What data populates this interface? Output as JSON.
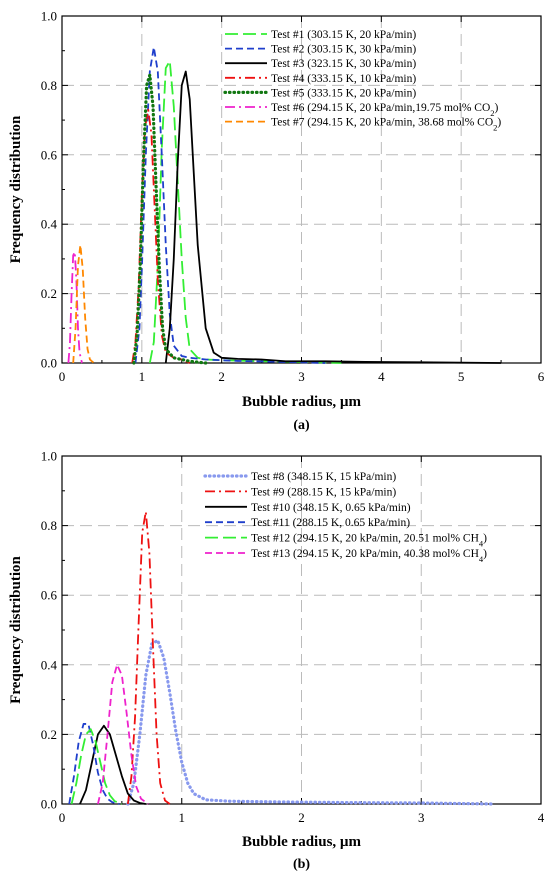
{
  "chart_data": [
    {
      "type": "line",
      "panel_label": "(a)",
      "xlabel": "Bubble radius, µm",
      "ylabel": "Frequency distribution",
      "xlim": [
        0,
        6
      ],
      "ylim": [
        0,
        1.0
      ],
      "xticks": [
        "0",
        "1",
        "2",
        "3",
        "4",
        "5",
        "6"
      ],
      "yticks": [
        "0.0",
        "0.2",
        "0.4",
        "0.6",
        "0.8",
        "1.0"
      ],
      "grid": true,
      "legend_position": "top-right",
      "series": [
        {
          "name": "Test #1 (303.15 K, 20 kPa/min)",
          "name_main": "Test #1 (303.15 K, 20 kPa/min)",
          "name_sub": "",
          "name_tail": "",
          "color": "#33ee33",
          "dash": "long-dash",
          "peak_x": 1.32,
          "peak_y": 0.875,
          "x": [
            1.1,
            1.15,
            1.2,
            1.25,
            1.3,
            1.35,
            1.4,
            1.45,
            1.5,
            1.55,
            1.6,
            1.7,
            1.8,
            2.0,
            2.5,
            3.0,
            3.5
          ],
          "y": [
            0.0,
            0.06,
            0.28,
            0.62,
            0.85,
            0.87,
            0.74,
            0.52,
            0.3,
            0.13,
            0.04,
            0.015,
            0.01,
            0.008,
            0.005,
            0.003,
            0.0
          ]
        },
        {
          "name": "Test #2 (303.15 K, 30 kPa/min)",
          "name_main": "Test #2 (303.15 K, 30 kPa/min)",
          "name_sub": "",
          "name_tail": "",
          "color": "#1f3fcc",
          "dash": "dash",
          "peak_x": 1.17,
          "peak_y": 0.915,
          "x": [
            0.92,
            0.97,
            1.0,
            1.05,
            1.1,
            1.15,
            1.2,
            1.25,
            1.3,
            1.35,
            1.4,
            1.5,
            1.6,
            1.8,
            2.2,
            2.8,
            3.3
          ],
          "y": [
            0.0,
            0.1,
            0.27,
            0.6,
            0.84,
            0.91,
            0.84,
            0.6,
            0.34,
            0.14,
            0.05,
            0.02,
            0.015,
            0.01,
            0.006,
            0.003,
            0.0
          ]
        },
        {
          "name": "Test #3 (323.15 K, 30 kPa/min)",
          "name_main": "Test #3 (323.15 K, 30 kPa/min)",
          "name_sub": "",
          "name_tail": "",
          "color": "#000000",
          "dash": "solid",
          "peak_x": 1.53,
          "peak_y": 0.845,
          "x": [
            1.3,
            1.35,
            1.4,
            1.45,
            1.5,
            1.55,
            1.6,
            1.65,
            1.7,
            1.8,
            1.9,
            2.0,
            2.2,
            2.5,
            2.8,
            3.3,
            3.8,
            4.5,
            5.5
          ],
          "y": [
            0.0,
            0.1,
            0.3,
            0.58,
            0.8,
            0.84,
            0.76,
            0.55,
            0.34,
            0.1,
            0.03,
            0.015,
            0.012,
            0.01,
            0.005,
            0.005,
            0.003,
            0.002,
            0.0
          ]
        },
        {
          "name": "Test #4 (333.15 K, 10 kPa/min)",
          "name_main": "Test #4 (333.15 K, 10 kPa/min)",
          "name_sub": "",
          "name_tail": "",
          "color": "#ee1111",
          "dash": "dash-dot",
          "peak_x": 1.08,
          "peak_y": 0.74,
          "x": [
            0.88,
            0.92,
            0.96,
            1.0,
            1.04,
            1.08,
            1.12,
            1.16,
            1.2,
            1.25,
            1.3,
            1.4,
            1.5,
            1.6
          ],
          "y": [
            0.0,
            0.06,
            0.22,
            0.48,
            0.68,
            0.73,
            0.66,
            0.45,
            0.24,
            0.08,
            0.03,
            0.015,
            0.01,
            0.0
          ]
        },
        {
          "name": "Test #5 (333.15 K, 20 kPa/min)",
          "name_main": "Test #5 (333.15 K, 20 kPa/min)",
          "name_sub": "",
          "name_tail": "",
          "color": "#117711",
          "dash": "dot",
          "peak_x": 1.1,
          "peak_y": 0.835,
          "x": [
            0.9,
            0.94,
            0.98,
            1.02,
            1.06,
            1.1,
            1.14,
            1.18,
            1.22,
            1.26,
            1.3,
            1.4,
            1.5,
            1.6,
            1.8
          ],
          "y": [
            0.0,
            0.08,
            0.28,
            0.58,
            0.8,
            0.83,
            0.74,
            0.5,
            0.27,
            0.1,
            0.04,
            0.015,
            0.01,
            0.005,
            0.0
          ]
        },
        {
          "name": "Test #6 (294.15 K, 20 kPa/min,19.75 mol% CO2)",
          "name_main": "Test #6 (294.15 K, 20 kPa/min,19.75 mol% CO",
          "name_sub": "2",
          "name_tail": ")",
          "color": "#ee22cc",
          "dash": "dash-dot",
          "peak_x": 0.15,
          "peak_y": 0.325,
          "x": [
            0.08,
            0.1,
            0.12,
            0.14,
            0.16,
            0.18,
            0.2,
            0.22,
            0.25
          ],
          "y": [
            0.0,
            0.06,
            0.2,
            0.31,
            0.32,
            0.24,
            0.1,
            0.03,
            0.0
          ]
        },
        {
          "name": "Test #7 (294.15 K, 20 kPa/min, 38.68 mol% CO2)",
          "name_main": "Test #7 (294.15 K, 20 kPa/min, 38.68 mol% CO",
          "name_sub": "2",
          "name_tail": ")",
          "color": "#ff8800",
          "dash": "dash",
          "peak_x": 0.23,
          "peak_y": 0.345,
          "x": [
            0.14,
            0.17,
            0.2,
            0.23,
            0.26,
            0.29,
            0.32,
            0.35,
            0.4
          ],
          "y": [
            0.0,
            0.1,
            0.28,
            0.34,
            0.27,
            0.13,
            0.04,
            0.01,
            0.0
          ]
        }
      ]
    },
    {
      "type": "line",
      "panel_label": "(b)",
      "xlabel": "Bubble radius, µm",
      "ylabel": "Frequency distribution",
      "xlim": [
        0,
        4
      ],
      "ylim": [
        0,
        1.0
      ],
      "xticks": [
        "0",
        "1",
        "2",
        "3",
        "4"
      ],
      "yticks": [
        "0.0",
        "0.2",
        "0.4",
        "0.6",
        "0.8",
        "1.0"
      ],
      "grid": true,
      "legend_position": "top-right",
      "series": [
        {
          "name": "Test #8 (348.15 K, 15 kPa/min)",
          "name_main": "Test #8 (348.15 K, 15 kPa/min)",
          "name_sub": "",
          "name_tail": "",
          "color": "#8899ee",
          "dash": "dot",
          "peak_x": 0.78,
          "peak_y": 0.475,
          "x": [
            0.55,
            0.6,
            0.65,
            0.7,
            0.75,
            0.8,
            0.85,
            0.9,
            0.95,
            1.0,
            1.05,
            1.1,
            1.2,
            1.4,
            1.8,
            2.4,
            3.0,
            3.6
          ],
          "y": [
            0.0,
            0.06,
            0.2,
            0.37,
            0.46,
            0.47,
            0.42,
            0.32,
            0.21,
            0.12,
            0.06,
            0.03,
            0.012,
            0.008,
            0.006,
            0.004,
            0.003,
            0.0
          ]
        },
        {
          "name": "Test #9 (288.15 K, 15 kPa/min)",
          "name_main": "Test #9 (288.15 K, 15 kPa/min)",
          "name_sub": "",
          "name_tail": "",
          "color": "#ee1111",
          "dash": "dash-dot",
          "peak_x": 0.7,
          "peak_y": 0.845,
          "x": [
            0.55,
            0.58,
            0.61,
            0.64,
            0.67,
            0.7,
            0.73,
            0.76,
            0.79,
            0.82,
            0.86,
            0.9
          ],
          "y": [
            0.0,
            0.08,
            0.25,
            0.52,
            0.78,
            0.84,
            0.72,
            0.45,
            0.2,
            0.06,
            0.01,
            0.0
          ]
        },
        {
          "name": "Test #10 (348.15 K, 0.65 kPa/min)",
          "name_main": "Test #10 (348.15 K, 0.65 kPa/min)",
          "name_sub": "",
          "name_tail": "",
          "color": "#000000",
          "dash": "solid",
          "peak_x": 0.35,
          "peak_y": 0.225,
          "x": [
            0.15,
            0.2,
            0.25,
            0.3,
            0.35,
            0.4,
            0.45,
            0.5,
            0.55,
            0.6,
            0.65,
            0.7
          ],
          "y": [
            0.0,
            0.04,
            0.12,
            0.2,
            0.225,
            0.2,
            0.14,
            0.08,
            0.03,
            0.01,
            0.003,
            0.0
          ]
        },
        {
          "name": "Test #11 (288.15 K, 0.65 kPa/min)",
          "name_main": "Test #11 (288.15 K, 0.65 kPa/min)",
          "name_sub": "",
          "name_tail": "",
          "color": "#1f3fcc",
          "dash": "dash",
          "peak_x": 0.2,
          "peak_y": 0.235,
          "x": [
            0.06,
            0.1,
            0.14,
            0.18,
            0.22,
            0.26,
            0.3,
            0.34,
            0.38,
            0.42,
            0.48
          ],
          "y": [
            0.0,
            0.08,
            0.18,
            0.23,
            0.23,
            0.17,
            0.09,
            0.04,
            0.015,
            0.005,
            0.0
          ]
        },
        {
          "name": "Test #12 (294.15 K, 20 kPa/min, 20.51 mol% CH4)",
          "name_main": "Test #12 (294.15 K, 20 kPa/min, 20.51 mol% CH",
          "name_sub": "4",
          "name_tail": ")",
          "color": "#33ee33",
          "dash": "long-dash",
          "peak_x": 0.24,
          "peak_y": 0.215,
          "x": [
            0.08,
            0.12,
            0.16,
            0.2,
            0.24,
            0.28,
            0.32,
            0.36,
            0.4,
            0.44,
            0.5
          ],
          "y": [
            0.0,
            0.06,
            0.14,
            0.2,
            0.215,
            0.18,
            0.12,
            0.06,
            0.025,
            0.008,
            0.0
          ]
        },
        {
          "name": "Test #13 (294.15 K, 20 kPa/min, 40.38 mol% CH4)",
          "name_main": "Test #13 (294.15 K, 20 kPa/min, 40.38 mol% CH",
          "name_sub": "4",
          "name_tail": ")",
          "color": "#ee22cc",
          "dash": "dash",
          "peak_x": 0.47,
          "peak_y": 0.405,
          "x": [
            0.3,
            0.34,
            0.38,
            0.42,
            0.46,
            0.5,
            0.54,
            0.58,
            0.62,
            0.66,
            0.72
          ],
          "y": [
            0.0,
            0.06,
            0.2,
            0.35,
            0.4,
            0.37,
            0.26,
            0.14,
            0.05,
            0.015,
            0.0
          ]
        }
      ]
    }
  ]
}
